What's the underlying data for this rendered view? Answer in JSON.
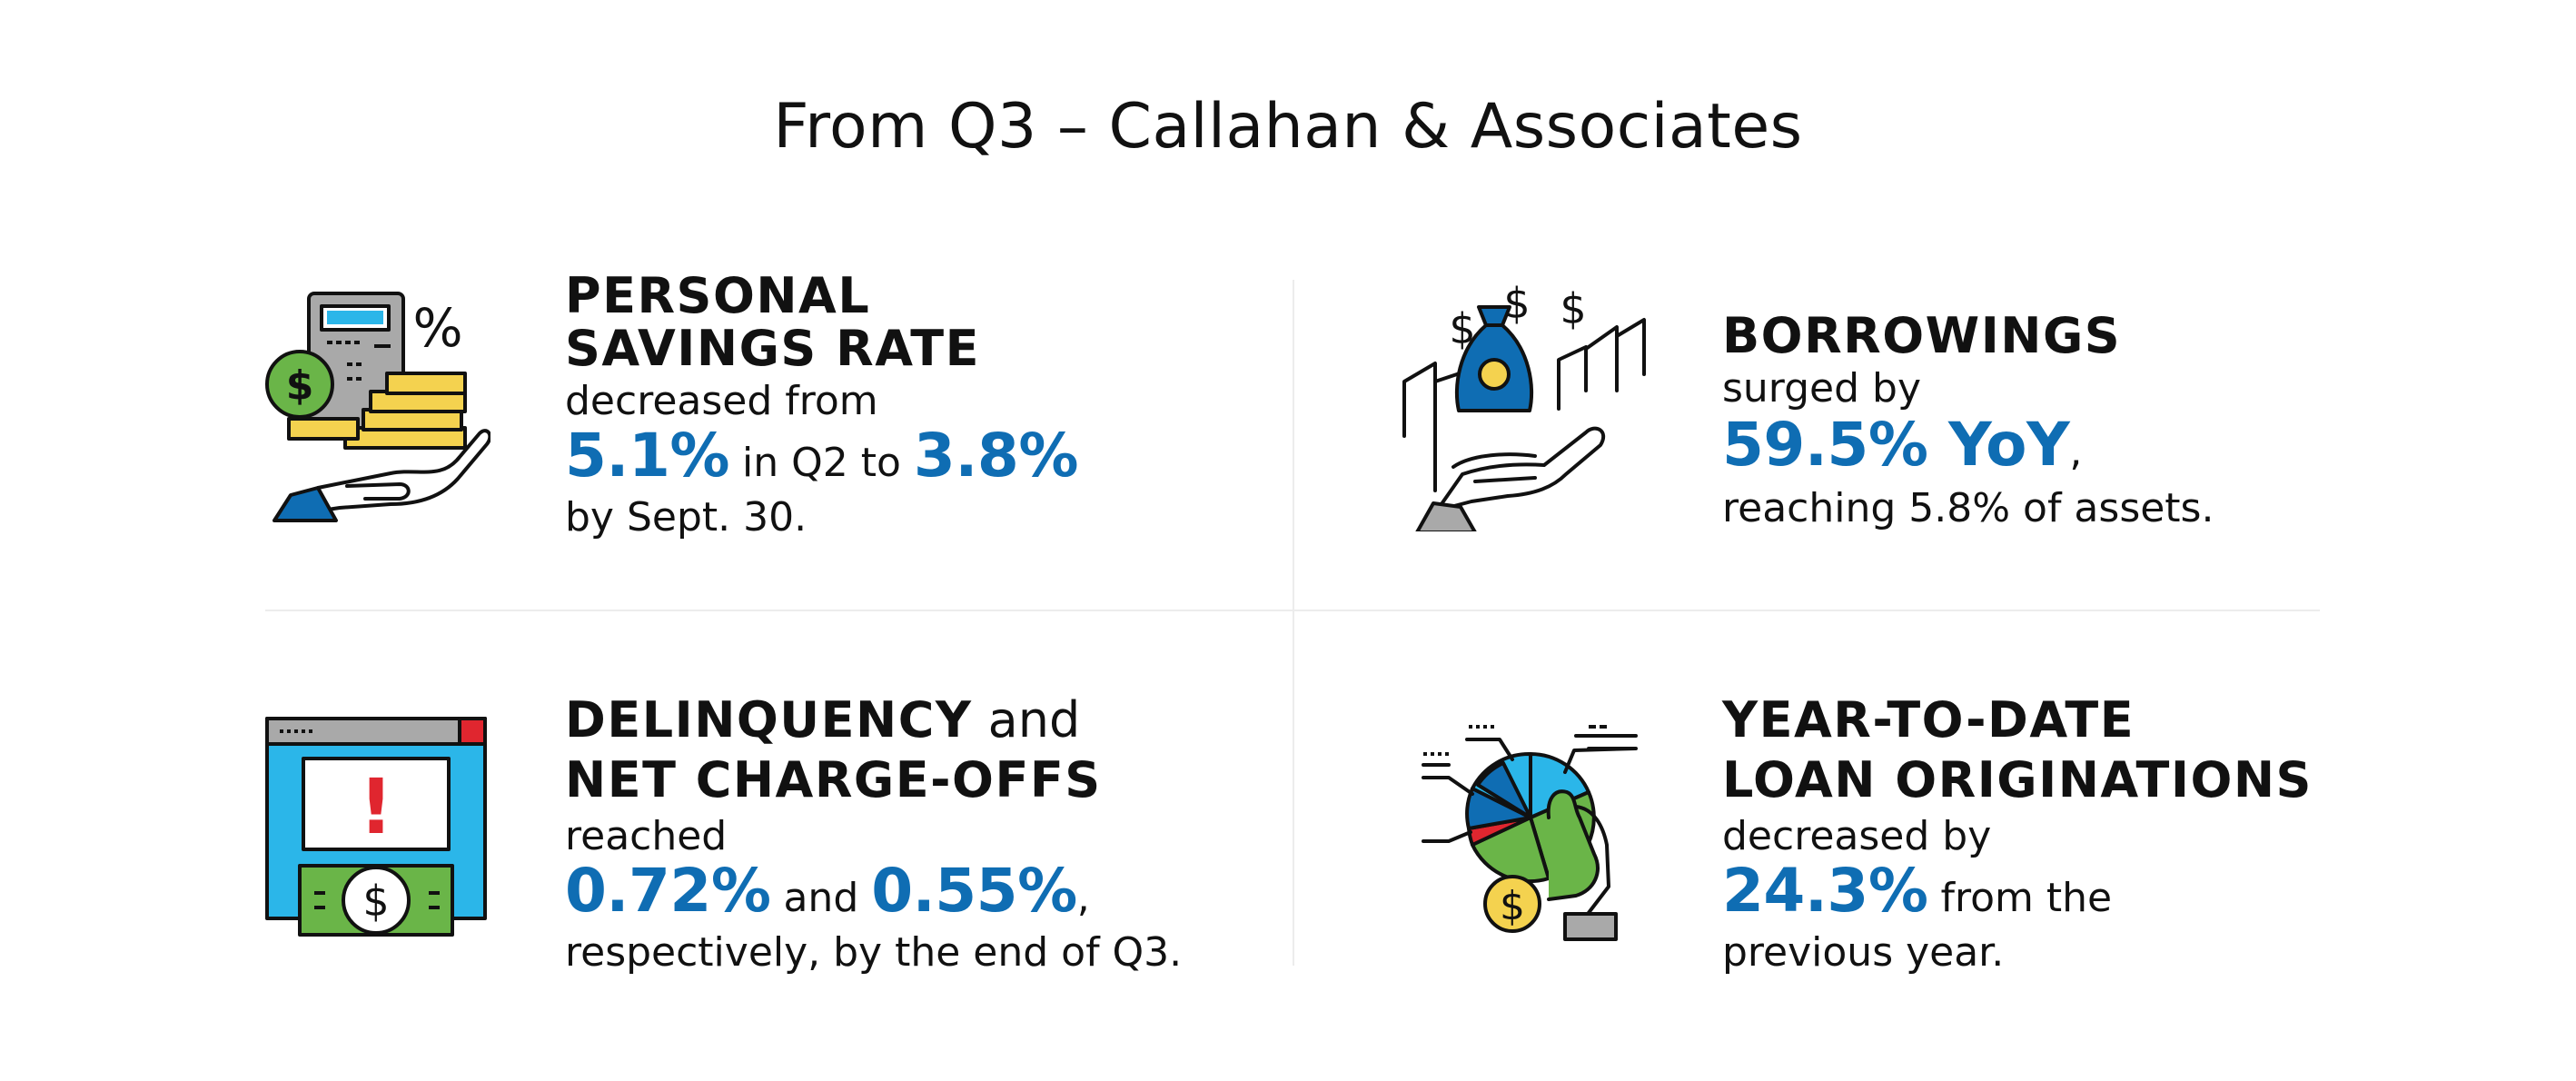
{
  "title": "From Q3 – Callahan & Associates",
  "colors": {
    "accent_blue": "#0f6db3",
    "green": "#6ab548",
    "yellow": "#f4d24f",
    "cyan": "#2bb6e9",
    "red": "#e0262f"
  },
  "panels": {
    "savings": {
      "icon": "calculator-coins-hand-icon",
      "heading_line1": "PERSONAL",
      "heading_line2": "SAVINGS RATE",
      "text_1": "decreased from",
      "value_1": "5.1%",
      "text_2": " in Q2 to ",
      "value_2": "3.8%",
      "text_3": "by Sept. 30.",
      "icon_symbols": {
        "dollar": "$",
        "percent": "%"
      }
    },
    "borrowings": {
      "icon": "money-bag-hand-icon",
      "heading": "BORROWINGS",
      "text_1": "surged by",
      "value_1": "59.5% YoY",
      "punct_1": ",",
      "text_2": "reaching 5.8% of assets.",
      "icon_symbols": {
        "dollar": "$"
      }
    },
    "delinquency": {
      "icon": "browser-alert-cash-icon",
      "heading_bold_1": "DELINQUENCY",
      "heading_light": " and",
      "heading_line2": "NET CHARGE-OFFS",
      "text_1": "reached",
      "value_1": "0.72%",
      "text_2": " and ",
      "value_2": "0.55%",
      "punct_1": ",",
      "text_3": "respectively, by the end of Q3.",
      "icon_symbols": {
        "alert": "!",
        "dollar": "$"
      }
    },
    "loans": {
      "icon": "pie-chart-hand-icon",
      "heading_line1": "YEAR-TO-DATE",
      "heading_line2": "LOAN ORIGINATIONS",
      "text_1": "decreased by",
      "value_1": "24.3%",
      "text_2": " from the",
      "text_3": "previous year.",
      "icon_symbols": {
        "dollar": "$"
      }
    }
  }
}
